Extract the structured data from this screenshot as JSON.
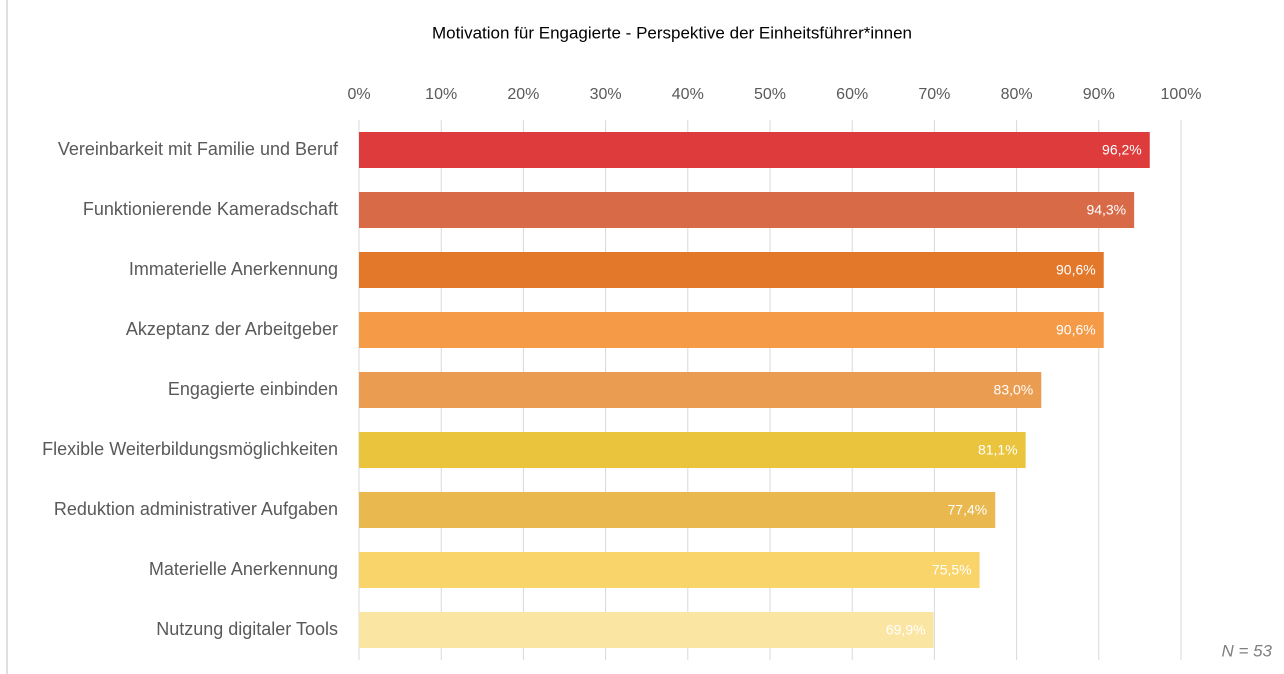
{
  "chart_data": {
    "type": "barh",
    "title": "Motivation für Engagierte - Perspektive der Einheitsführer*innen",
    "categories": [
      "Vereinbarkeit mit Familie und Beruf",
      "Funktionierende Kameradschaft",
      "Immaterielle Anerkennung",
      "Akzeptanz der Arbeitgeber",
      "Engagierte einbinden",
      "Flexible Weiterbildungsmöglichkeiten",
      "Reduktion administrativer Aufgaben",
      "Materielle Anerkennung",
      "Nutzung digitaler Tools"
    ],
    "values": [
      96.2,
      94.3,
      90.6,
      90.6,
      83.0,
      81.1,
      77.4,
      75.5,
      69.9
    ],
    "value_labels": [
      "96,2%",
      "94,3%",
      "90,6%",
      "90,6%",
      "83,0%",
      "81,1%",
      "77,4%",
      "75,5%",
      "69,9%"
    ],
    "colors": [
      "#de3c3c",
      "#d86a48",
      "#e3772a",
      "#f59a46",
      "#ea9c50",
      "#e9c43c",
      "#e9b84e",
      "#f8d46a",
      "#fbe5a2"
    ],
    "xlim": [
      0,
      100
    ],
    "xticks": [
      {
        "value": 0,
        "label": "0%"
      },
      {
        "value": 10,
        "label": "10%"
      },
      {
        "value": 20,
        "label": "20%"
      },
      {
        "value": 30,
        "label": "30%"
      },
      {
        "value": 40,
        "label": "40%"
      },
      {
        "value": 50,
        "label": "50%"
      },
      {
        "value": 60,
        "label": "60%"
      },
      {
        "value": 70,
        "label": "70%"
      },
      {
        "value": 80,
        "label": "80%"
      },
      {
        "value": 90,
        "label": "90%"
      },
      {
        "value": 100,
        "label": "100%"
      }
    ],
    "grid": true,
    "annotation": "N = 53"
  }
}
